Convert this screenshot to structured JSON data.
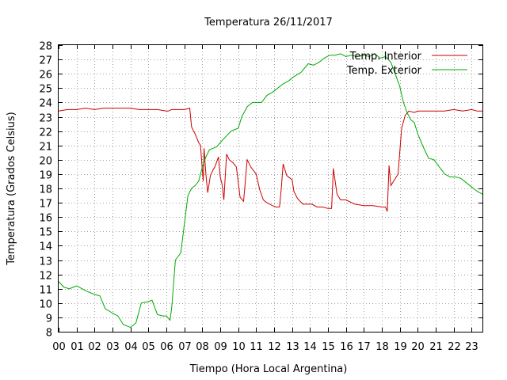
{
  "chart_data": {
    "type": "line",
    "title": "Temperatura 26/11/2017",
    "xlabel": "Tiempo (Hora Local Argentina)",
    "ylabel": "Temperatura (Grados Celsius)",
    "xlim": [
      0,
      23.6
    ],
    "ylim": [
      8,
      28
    ],
    "x_ticks": [
      "00",
      "01",
      "02",
      "03",
      "04",
      "05",
      "06",
      "07",
      "08",
      "09",
      "10",
      "11",
      "12",
      "13",
      "14",
      "15",
      "16",
      "17",
      "18",
      "19",
      "20",
      "21",
      "22",
      "23"
    ],
    "y_ticks": [
      8,
      9,
      10,
      11,
      12,
      13,
      14,
      15,
      16,
      17,
      18,
      19,
      20,
      21,
      22,
      23,
      24,
      25,
      26,
      27,
      28
    ],
    "grid": true,
    "legend_position": "top-right",
    "series": [
      {
        "name": "Temp. Interior",
        "color": "#cc0000",
        "x": [
          0,
          0.5,
          1,
          1.5,
          2,
          2.5,
          3,
          3.5,
          4,
          4.5,
          5,
          5.5,
          6,
          6.1,
          6.3,
          6.6,
          7,
          7.3,
          7.4,
          7.6,
          7.8,
          7.9,
          8.0,
          8.05,
          8.1,
          8.2,
          8.3,
          8.45,
          8.6,
          8.7,
          8.9,
          9.0,
          9.1,
          9.2,
          9.35,
          9.5,
          9.7,
          9.9,
          10.1,
          10.3,
          10.5,
          10.7,
          11.0,
          11.2,
          11.4,
          11.6,
          11.9,
          12.1,
          12.3,
          12.4,
          12.5,
          12.7,
          12.9,
          13.0,
          13.1,
          13.3,
          13.6,
          13.9,
          14.1,
          14.4,
          14.7,
          15.0,
          15.2,
          15.3,
          15.5,
          15.7,
          16.0,
          16.5,
          17.0,
          17.5,
          18.0,
          18.2,
          18.3,
          18.4,
          18.5,
          18.6,
          18.7,
          18.9,
          19.1,
          19.3,
          19.5,
          19.8,
          20,
          20.5,
          21,
          21.5,
          22,
          22.5,
          23,
          23.3,
          23.6
        ],
        "values": [
          23.4,
          23.5,
          23.5,
          23.6,
          23.5,
          23.6,
          23.6,
          23.6,
          23.6,
          23.5,
          23.5,
          23.5,
          23.4,
          23.4,
          23.5,
          23.5,
          23.5,
          23.6,
          22.3,
          21.8,
          21.2,
          21.0,
          19.3,
          18.5,
          20.8,
          19.0,
          17.7,
          18.9,
          19.3,
          19.5,
          20.2,
          18.8,
          18.3,
          17.2,
          20.4,
          20.0,
          19.8,
          19.5,
          17.4,
          17.1,
          20.0,
          19.5,
          19.0,
          17.9,
          17.2,
          17.0,
          16.8,
          16.7,
          16.7,
          18.0,
          19.7,
          18.9,
          18.7,
          18.6,
          17.8,
          17.3,
          16.9,
          16.9,
          16.9,
          16.7,
          16.7,
          16.6,
          16.6,
          19.4,
          17.6,
          17.2,
          17.2,
          16.9,
          16.8,
          16.8,
          16.7,
          16.7,
          16.4,
          19.6,
          18.2,
          18.4,
          18.6,
          19.0,
          22.2,
          23.1,
          23.4,
          23.3,
          23.4,
          23.4,
          23.4,
          23.4,
          23.5,
          23.4,
          23.5,
          23.4,
          23.4
        ]
      },
      {
        "name": "Temp. Exterior",
        "color": "#00aa00",
        "x": [
          0,
          0.3,
          0.6,
          1,
          1.3,
          1.6,
          2,
          2.3,
          2.6,
          3,
          3.3,
          3.6,
          4,
          4.3,
          4.6,
          5,
          5.2,
          5.5,
          5.8,
          6,
          6.2,
          6.3,
          6.5,
          6.8,
          7,
          7.2,
          7.4,
          7.6,
          7.8,
          8,
          8.2,
          8.4,
          8.6,
          8.8,
          9,
          9.3,
          9.6,
          10,
          10.2,
          10.5,
          10.8,
          11,
          11.3,
          11.6,
          11.9,
          12.2,
          12.5,
          12.8,
          13.1,
          13.5,
          13.9,
          14.2,
          14.5,
          14.8,
          15.1,
          15.4,
          15.7,
          16,
          16.3,
          16.6,
          17,
          17.3,
          17.6,
          17.9,
          18.2,
          18.5,
          18.8,
          19.0,
          19.2,
          19.4,
          19.6,
          19.8,
          20,
          20.3,
          20.6,
          20.9,
          21.2,
          21.5,
          21.8,
          22.1,
          22.4,
          22.7,
          23,
          23.3,
          23.6
        ],
        "values": [
          11.5,
          11.1,
          11.0,
          11.2,
          11.0,
          10.8,
          10.6,
          10.5,
          9.6,
          9.3,
          9.1,
          8.5,
          8.3,
          8.6,
          10.0,
          10.1,
          10.2,
          9.2,
          9.1,
          9.1,
          8.8,
          9.7,
          13.0,
          13.5,
          15.5,
          17.5,
          18.0,
          18.2,
          18.5,
          19.5,
          20.2,
          20.7,
          20.8,
          20.9,
          21.2,
          21.6,
          22.0,
          22.2,
          23.0,
          23.7,
          24.0,
          24.0,
          24.0,
          24.5,
          24.7,
          25.0,
          25.3,
          25.5,
          25.8,
          26.1,
          26.7,
          26.6,
          26.8,
          27.1,
          27.3,
          27.3,
          27.4,
          27.2,
          27.3,
          27.2,
          27.3,
          27.2,
          27.4,
          27.1,
          27.2,
          26.8,
          25.8,
          25.1,
          24.0,
          23.3,
          22.8,
          22.6,
          21.8,
          20.9,
          20.1,
          20.0,
          19.5,
          19.0,
          18.8,
          18.8,
          18.7,
          18.4,
          18.1,
          17.8,
          17.6
        ]
      }
    ]
  }
}
